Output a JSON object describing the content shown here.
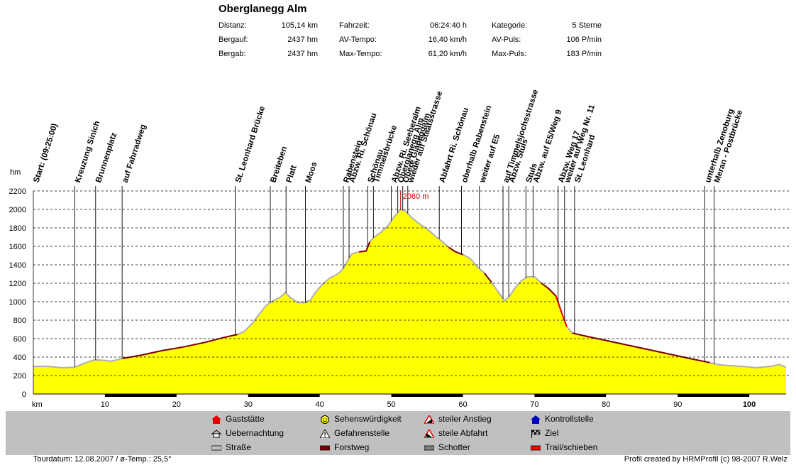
{
  "title": "Oberglanegg Alm",
  "stats": [
    {
      "label": "Distanz:",
      "value": "105,14 km"
    },
    {
      "label": "Bergauf:",
      "value": "2437 hm"
    },
    {
      "label": "Bergab:",
      "value": "2437 hm"
    },
    {
      "label": "Fahrzeit:",
      "value": "06:24:40 h"
    },
    {
      "label": "AV-Tempo:",
      "value": "16,40 km/h"
    },
    {
      "label": "Max-Tempo:",
      "value": "61,20 km/h"
    },
    {
      "label": "Kategorie:",
      "value": "5 Sterne"
    },
    {
      "label": "AV-Puls:",
      "value": "106 P/min"
    },
    {
      "label": "Max-Puls:",
      "value": "183 P/min"
    }
  ],
  "legend": [
    {
      "label": "Gaststätte",
      "icon": "house-red-icon"
    },
    {
      "label": "Uebernachtung",
      "icon": "lodging-icon"
    },
    {
      "label": "Straße",
      "icon": "road-surface-icon",
      "color": "#c0c0c0"
    },
    {
      "label": "Sehenswürdigkeit",
      "icon": "smiley-icon"
    },
    {
      "label": "Gefahrenstelle",
      "icon": "warning-icon"
    },
    {
      "label": "Forstweg",
      "icon": "forest-road-surface-icon",
      "color": "#800000"
    },
    {
      "label": "steiler Anstieg",
      "icon": "steep-climb-icon"
    },
    {
      "label": "steile Abfahrt",
      "icon": "steep-descent-icon"
    },
    {
      "label": "Schotter",
      "icon": "gravel-surface-icon",
      "color": "#808080"
    },
    {
      "label": "Kontrollstelle",
      "icon": "checkpoint-icon"
    },
    {
      "label": "Ziel",
      "icon": "finish-flag-icon"
    },
    {
      "label": "Trail/schieben",
      "icon": "trail-surface-icon",
      "color": "#ff0000"
    }
  ],
  "footer": {
    "left": "Tourdatum: 12.08.2007  /  ø-Temp.: 25,5°",
    "right": "Profil created by HRMProfil (c) 98-2007 R.Welz"
  },
  "chart_data": {
    "type": "area",
    "xlabel": "km",
    "ylabel": "hm",
    "xlim": [
      0,
      105.14
    ],
    "ylim": [
      0,
      2200
    ],
    "xticks": [
      10,
      20,
      30,
      40,
      50,
      60,
      70,
      80,
      90,
      100
    ],
    "yticks": [
      0,
      200,
      400,
      600,
      800,
      1000,
      1200,
      1400,
      1600,
      1800,
      2000,
      2200
    ],
    "grid": true,
    "fill_color": "#ffff00",
    "max_label": "2060 m",
    "max_point": {
      "x": 51.3,
      "y": 2000
    },
    "profile": [
      [
        0,
        300
      ],
      [
        2,
        300
      ],
      [
        4,
        285
      ],
      [
        5.8,
        290
      ],
      [
        7,
        330
      ],
      [
        8.5,
        370
      ],
      [
        10,
        365
      ],
      [
        10.8,
        355
      ],
      [
        12.5,
        385
      ],
      [
        15,
        420
      ],
      [
        18,
        470
      ],
      [
        21,
        510
      ],
      [
        24,
        560
      ],
      [
        26.5,
        610
      ],
      [
        28.5,
        645
      ],
      [
        29.5,
        680
      ],
      [
        30.5,
        760
      ],
      [
        31.5,
        860
      ],
      [
        32.5,
        960
      ],
      [
        33.5,
        1010
      ],
      [
        34.5,
        1050
      ],
      [
        35.2,
        1100
      ],
      [
        36,
        1040
      ],
      [
        37,
        990
      ],
      [
        38,
        990
      ],
      [
        38.7,
        1020
      ],
      [
        39.5,
        1110
      ],
      [
        40.5,
        1200
      ],
      [
        41.5,
        1260
      ],
      [
        42.5,
        1300
      ],
      [
        43.3,
        1360
      ],
      [
        44,
        1460
      ],
      [
        44.5,
        1520
      ],
      [
        45.5,
        1540
      ],
      [
        46.5,
        1550
      ],
      [
        47,
        1650
      ],
      [
        47.6,
        1700
      ],
      [
        48.5,
        1750
      ],
      [
        49.5,
        1820
      ],
      [
        50.4,
        1920
      ],
      [
        51.3,
        2000
      ],
      [
        52,
        1980
      ],
      [
        53,
        1900
      ],
      [
        54,
        1840
      ],
      [
        55,
        1790
      ],
      [
        56,
        1720
      ],
      [
        57,
        1660
      ],
      [
        58,
        1590
      ],
      [
        59,
        1540
      ],
      [
        60,
        1510
      ],
      [
        61,
        1470
      ],
      [
        62,
        1380
      ],
      [
        63,
        1310
      ],
      [
        64,
        1210
      ],
      [
        65,
        1100
      ],
      [
        65.8,
        1010
      ],
      [
        66.5,
        1060
      ],
      [
        67.3,
        1150
      ],
      [
        68.2,
        1230
      ],
      [
        69,
        1270
      ],
      [
        70,
        1270
      ],
      [
        71,
        1200
      ],
      [
        72,
        1140
      ],
      [
        73,
        1060
      ],
      [
        73.8,
        880
      ],
      [
        74.5,
        730
      ],
      [
        75.3,
        660
      ],
      [
        77,
        630
      ],
      [
        80,
        580
      ],
      [
        83,
        530
      ],
      [
        86,
        480
      ],
      [
        89,
        430
      ],
      [
        92,
        380
      ],
      [
        94.5,
        340
      ],
      [
        95.5,
        320
      ],
      [
        97,
        310
      ],
      [
        99,
        300
      ],
      [
        101,
        285
      ],
      [
        103,
        300
      ],
      [
        104.2,
        320
      ],
      [
        105.14,
        290
      ]
    ],
    "waypoints": [
      {
        "label": "Start: (09:25:00)",
        "x": 0
      },
      {
        "label": "Kreuzung Sinich",
        "x": 5.8
      },
      {
        "label": "Brunnenplatz",
        "x": 8.7
      },
      {
        "label": "auf Fahrradweg",
        "x": 12.4
      },
      {
        "label": "St. Leonhard Brücke",
        "x": 28.2
      },
      {
        "label": "Breiteben",
        "x": 33.1
      },
      {
        "label": "Platt",
        "x": 35.3
      },
      {
        "label": "Moos",
        "x": 38.0
      },
      {
        "label": "Rabenstein",
        "x": 43.3
      },
      {
        "label": "Abzw. Ri. Schönau",
        "x": 44.1
      },
      {
        "label": "Schönau",
        "x": 46.7
      },
      {
        "label": "Timmelsbrücke",
        "x": 47.5
      },
      {
        "label": "Abzw. Ri. Seeberalm",
        "x": 50.0
      },
      {
        "label": "Oberglanegg Alm",
        "x": 50.9
      },
      {
        "label": "Obere Glaneggalm",
        "x": 51.6
      },
      {
        "label": "wieder auf Staatsstrasse",
        "x": 52.3
      },
      {
        "label": "Abfahrt Ri. Schönau",
        "x": 56.7
      },
      {
        "label": "oberhalb Rabenstein",
        "x": 59.8
      },
      {
        "label": "weiter auf E5",
        "x": 62.3
      },
      {
        "label": "auf Timmelsjochsstrasse",
        "x": 65.6
      },
      {
        "label": "Abzw. Stuls",
        "x": 66.4
      },
      {
        "label": "Stuls",
        "x": 68.8
      },
      {
        "label": "Abzw. auf E5/Weg 9",
        "x": 69.8
      },
      {
        "label": "Abzw. Weg 17",
        "x": 73.3
      },
      {
        "label": "weiter auf Weg Nr. 11",
        "x": 74.2
      },
      {
        "label": "St. Leonhard",
        "x": 75.6
      },
      {
        "label": "unterhalb Zenoburg",
        "x": 93.8
      },
      {
        "label": "Meran - Postbrücke",
        "x": 95.1
      }
    ]
  }
}
